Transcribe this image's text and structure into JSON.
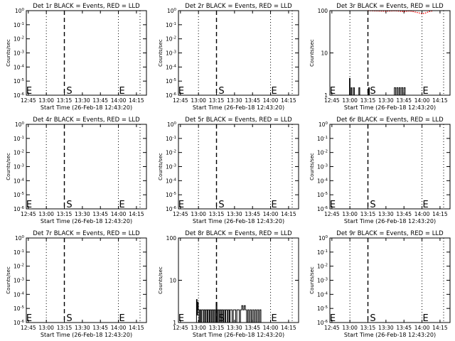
{
  "figure": {
    "background": "#ffffff",
    "events_color": "#000000",
    "lld_color": "#ff0000"
  },
  "chart_data": [
    {
      "type": "line",
      "title": "Det 1r BLACK = Events, RED = LLD",
      "xlabel": "Start Time (26-Feb-18 12:43:20)",
      "ylabel": "Counts/sec",
      "xticks": [
        "12:45",
        "13:00",
        "13:15",
        "13:30",
        "13:45",
        "14:00",
        "14:15"
      ],
      "yscale": "log",
      "yticks": [
        "10^0",
        "10^-1",
        "10^-2",
        "10^-3",
        "10^-4",
        "10^-5",
        "10^-6"
      ],
      "xlim": [
        "12:43:20",
        "14:23:20"
      ],
      "ylim": [
        "1e-6",
        "1"
      ],
      "markers": [
        {
          "time": "13:15",
          "label": "S"
        },
        {
          "time": "14:00",
          "label": "E"
        }
      ],
      "dotted_lines": [
        "13:00",
        "14:00",
        "14:18"
      ],
      "dashed_lines": [
        "13:15"
      ],
      "side_labels": [
        "E"
      ],
      "series": []
    },
    {
      "type": "line",
      "title": "Det 2r BLACK = Events, RED = LLD",
      "xlabel": "Start Time (26-Feb-18 12:43:20)",
      "ylabel": "Counts/sec",
      "xticks": [
        "12:45",
        "13:00",
        "13:15",
        "13:30",
        "13:45",
        "14:00",
        "14:15"
      ],
      "yscale": "log",
      "yticks": [
        "10^0",
        "10^-1",
        "10^-2",
        "10^-3",
        "10^-4",
        "10^-5",
        "10^-6"
      ],
      "xlim": [
        "12:43:20",
        "14:23:20"
      ],
      "ylim": [
        "1e-6",
        "1"
      ],
      "markers": [
        {
          "time": "13:15",
          "label": "S"
        },
        {
          "time": "14:00",
          "label": "E"
        }
      ],
      "dotted_lines": [
        "13:00",
        "14:00",
        "14:18"
      ],
      "dashed_lines": [
        "13:15"
      ],
      "side_labels": [
        "E"
      ],
      "series": []
    },
    {
      "type": "line",
      "title": "Det 3r BLACK = Events, RED = LLD",
      "xlabel": "Start Time (26-Feb-18 12:43:20)",
      "ylabel": "Counts/sec",
      "xticks": [
        "12:45",
        "13:00",
        "13:15",
        "13:30",
        "13:45",
        "14:00",
        "14:15"
      ],
      "yscale": "log",
      "yticks": [
        "100",
        "10",
        "1"
      ],
      "xlim": [
        "12:43:20",
        "14:23:20"
      ],
      "ylim": [
        "1",
        "100"
      ],
      "markers": [
        {
          "time": "13:15",
          "label": "S"
        },
        {
          "time": "14:00",
          "label": "E"
        }
      ],
      "dotted_lines": [
        "13:00",
        "14:00",
        "14:18"
      ],
      "dashed_lines": [
        "13:15"
      ],
      "side_labels": [
        "E"
      ],
      "series": [
        {
          "color": "#000000",
          "style": "histogram",
          "points": [
            {
              "t": "12:59:00",
              "v": 1
            },
            {
              "t": "12:59:40",
              "v": 2.5
            },
            {
              "t": "13:00:10",
              "v": 1
            },
            {
              "t": "13:01:00",
              "v": 1.5
            },
            {
              "t": "13:01:40",
              "v": 1
            },
            {
              "t": "13:03:00",
              "v": 1.5
            },
            {
              "t": "13:03:40",
              "v": 1
            },
            {
              "t": "13:07:30",
              "v": 1.5
            },
            {
              "t": "13:08:10",
              "v": 1
            },
            {
              "t": "13:15:30",
              "v": 1.5
            },
            {
              "t": "13:16:10",
              "v": 1
            },
            {
              "t": "13:37:00",
              "v": 1.5
            },
            {
              "t": "13:38:00",
              "v": 1
            },
            {
              "t": "13:39:00",
              "v": 1.5
            },
            {
              "t": "13:40:00",
              "v": 1
            },
            {
              "t": "13:41:00",
              "v": 1.5
            },
            {
              "t": "13:42:00",
              "v": 1
            },
            {
              "t": "13:43:00",
              "v": 1.5
            },
            {
              "t": "13:44:00",
              "v": 1
            },
            {
              "t": "13:45:00",
              "v": 1.5
            },
            {
              "t": "13:46:00",
              "v": 1
            }
          ]
        },
        {
          "color": "#ff0000",
          "style": "dotted",
          "points": [
            {
              "t": "13:15:00",
              "v": 100
            },
            {
              "t": "13:22:00",
              "v": 98
            },
            {
              "t": "13:30:00",
              "v": 97
            },
            {
              "t": "13:38:00",
              "v": 99
            },
            {
              "t": "13:45:00",
              "v": 95
            },
            {
              "t": "13:50:00",
              "v": 98
            },
            {
              "t": "13:55:00",
              "v": 92
            },
            {
              "t": "14:00:00",
              "v": 85
            },
            {
              "t": "14:03:00",
              "v": 88
            },
            {
              "t": "14:06:00",
              "v": 95
            },
            {
              "t": "14:09:00",
              "v": 99
            }
          ]
        }
      ]
    },
    {
      "type": "line",
      "title": "Det 4r BLACK = Events, RED = LLD",
      "xlabel": "Start Time (26-Feb-18 12:43:20)",
      "ylabel": "Counts/sec",
      "xticks": [
        "12:45",
        "13:00",
        "13:15",
        "13:30",
        "13:45",
        "14:00",
        "14:15"
      ],
      "yscale": "log",
      "yticks": [
        "10^0",
        "10^-1",
        "10^-2",
        "10^-3",
        "10^-4",
        "10^-5",
        "10^-6"
      ],
      "xlim": [
        "12:43:20",
        "14:23:20"
      ],
      "ylim": [
        "1e-6",
        "1"
      ],
      "markers": [
        {
          "time": "13:15",
          "label": "S"
        },
        {
          "time": "14:00",
          "label": "E"
        }
      ],
      "dotted_lines": [
        "13:00",
        "14:00",
        "14:18"
      ],
      "dashed_lines": [
        "13:15"
      ],
      "side_labels": [
        "E"
      ],
      "series": []
    },
    {
      "type": "line",
      "title": "Det 5r BLACK = Events, RED = LLD",
      "xlabel": "Start Time (26-Feb-18 12:43:20)",
      "ylabel": "Counts/sec",
      "xticks": [
        "12:45",
        "13:00",
        "13:15",
        "13:30",
        "13:45",
        "14:00",
        "14:15"
      ],
      "yscale": "log",
      "yticks": [
        "10^0",
        "10^-1",
        "10^-2",
        "10^-3",
        "10^-4",
        "10^-5",
        "10^-6"
      ],
      "xlim": [
        "12:43:20",
        "14:23:20"
      ],
      "ylim": [
        "1e-6",
        "1"
      ],
      "markers": [
        {
          "time": "13:15",
          "label": "S"
        },
        {
          "time": "14:00",
          "label": "E"
        }
      ],
      "dotted_lines": [
        "13:00",
        "14:00",
        "14:18"
      ],
      "dashed_lines": [
        "13:15"
      ],
      "side_labels": [
        "E"
      ],
      "series": []
    },
    {
      "type": "line",
      "title": "Det 6r BLACK = Events, RED = LLD",
      "xlabel": "Start Time (26-Feb-18 12:43:20)",
      "ylabel": "Counts/sec",
      "xticks": [
        "12:45",
        "13:00",
        "13:15",
        "13:30",
        "13:45",
        "14:00",
        "14:15"
      ],
      "yscale": "log",
      "yticks": [
        "10^0",
        "10^-1",
        "10^-2",
        "10^-3",
        "10^-4",
        "10^-5",
        "10^-6"
      ],
      "xlim": [
        "12:43:20",
        "14:23:20"
      ],
      "ylim": [
        "1e-6",
        "1"
      ],
      "markers": [
        {
          "time": "13:15",
          "label": "S"
        },
        {
          "time": "14:00",
          "label": "E"
        }
      ],
      "dotted_lines": [
        "13:00",
        "14:00",
        "14:18"
      ],
      "dashed_lines": [
        "13:15"
      ],
      "side_labels": [
        "E"
      ],
      "series": []
    },
    {
      "type": "line",
      "title": "Det 7r BLACK = Events, RED = LLD",
      "xlabel": "Start Time (26-Feb-18 12:43:20)",
      "ylabel": "Counts/sec",
      "xticks": [
        "12:45",
        "13:00",
        "13:15",
        "13:30",
        "13:45",
        "14:00",
        "14:15"
      ],
      "yscale": "log",
      "yticks": [
        "10^0",
        "10^-1",
        "10^-2",
        "10^-3",
        "10^-4",
        "10^-5",
        "10^-6"
      ],
      "xlim": [
        "12:43:20",
        "14:23:20"
      ],
      "ylim": [
        "1e-6",
        "1"
      ],
      "markers": [
        {
          "time": "13:15",
          "label": "S"
        },
        {
          "time": "14:00",
          "label": "E"
        }
      ],
      "dotted_lines": [
        "13:00",
        "14:00",
        "14:18"
      ],
      "dashed_lines": [
        "13:15"
      ],
      "side_labels": [
        "E"
      ],
      "series": []
    },
    {
      "type": "line",
      "title": "Det 8r BLACK = Events, RED = LLD",
      "xlabel": "Start Time (26-Feb-18 12:43:20)",
      "ylabel": "Counts/sec",
      "xticks": [
        "12:45",
        "13:00",
        "13:15",
        "13:30",
        "13:45",
        "14:00",
        "14:15"
      ],
      "yscale": "log",
      "yticks": [
        "100",
        "10",
        "1"
      ],
      "xlim": [
        "12:43:20",
        "14:23:20"
      ],
      "ylim": [
        "1",
        "100"
      ],
      "markers": [
        {
          "time": "13:15",
          "label": "S"
        },
        {
          "time": "14:00",
          "label": "E"
        }
      ],
      "dotted_lines": [
        "13:00",
        "14:00",
        "14:18"
      ],
      "dashed_lines": [
        "13:15"
      ],
      "side_labels": [
        "E"
      ],
      "series": [
        {
          "color": "#000000",
          "style": "histogram",
          "points": [
            {
              "t": "12:58:00",
              "v": 1
            },
            {
              "t": "12:58:20",
              "v": 3.5
            },
            {
              "t": "12:58:50",
              "v": 1.5
            },
            {
              "t": "12:59:20",
              "v": 3
            },
            {
              "t": "12:59:50",
              "v": 2
            },
            {
              "t": "13:00:30",
              "v": 1
            },
            {
              "t": "13:01:10",
              "v": 2
            },
            {
              "t": "13:02:00",
              "v": 1
            },
            {
              "t": "13:02:40",
              "v": 2
            },
            {
              "t": "13:04:00",
              "v": 1
            },
            {
              "t": "13:04:40",
              "v": 2
            },
            {
              "t": "13:05:40",
              "v": 1
            },
            {
              "t": "13:06:20",
              "v": 2
            },
            {
              "t": "13:07:20",
              "v": 1
            },
            {
              "t": "13:08:00",
              "v": 2
            },
            {
              "t": "13:09:00",
              "v": 1
            },
            {
              "t": "13:09:40",
              "v": 2
            },
            {
              "t": "13:10:40",
              "v": 1
            },
            {
              "t": "13:11:20",
              "v": 2
            },
            {
              "t": "13:12:20",
              "v": 1
            },
            {
              "t": "13:13:00",
              "v": 2
            },
            {
              "t": "13:14:00",
              "v": 1
            },
            {
              "t": "13:14:40",
              "v": 3
            },
            {
              "t": "13:15:20",
              "v": 1
            },
            {
              "t": "13:16:00",
              "v": 2
            },
            {
              "t": "13:17:00",
              "v": 1
            },
            {
              "t": "13:17:40",
              "v": 2
            },
            {
              "t": "13:18:40",
              "v": 1
            },
            {
              "t": "13:19:20",
              "v": 2
            },
            {
              "t": "13:20:20",
              "v": 1
            },
            {
              "t": "13:21:00",
              "v": 2
            },
            {
              "t": "13:22:00",
              "v": 1
            },
            {
              "t": "13:22:40",
              "v": 2
            },
            {
              "t": "13:24:00",
              "v": 1
            },
            {
              "t": "13:24:40",
              "v": 2
            },
            {
              "t": "13:25:40",
              "v": 1
            },
            {
              "t": "13:26:20",
              "v": 2
            },
            {
              "t": "13:28:00",
              "v": 1
            },
            {
              "t": "13:29:00",
              "v": 2
            },
            {
              "t": "13:31:00",
              "v": 1
            },
            {
              "t": "13:32:00",
              "v": 2
            },
            {
              "t": "13:34:00",
              "v": 1
            },
            {
              "t": "13:35:00",
              "v": 2
            },
            {
              "t": "13:36:00",
              "v": 2.5
            },
            {
              "t": "13:37:00",
              "v": 2
            },
            {
              "t": "13:38:00",
              "v": 2.5
            },
            {
              "t": "13:39:00",
              "v": 2
            },
            {
              "t": "13:40:00",
              "v": 1
            },
            {
              "t": "13:41:00",
              "v": 2
            },
            {
              "t": "13:42:00",
              "v": 1
            },
            {
              "t": "13:43:00",
              "v": 2
            },
            {
              "t": "13:44:00",
              "v": 1
            },
            {
              "t": "13:45:00",
              "v": 2
            },
            {
              "t": "13:46:00",
              "v": 1
            },
            {
              "t": "13:47:00",
              "v": 2
            },
            {
              "t": "13:48:00",
              "v": 1
            },
            {
              "t": "13:49:00",
              "v": 2
            },
            {
              "t": "13:50:00",
              "v": 1
            },
            {
              "t": "13:51:00",
              "v": 2
            },
            {
              "t": "13:52:00",
              "v": 1
            }
          ]
        }
      ]
    },
    {
      "type": "line",
      "title": "Det 9r BLACK = Events, RED = LLD",
      "xlabel": "Start Time (26-Feb-18 12:43:20)",
      "ylabel": "Counts/sec",
      "xticks": [
        "12:45",
        "13:00",
        "13:15",
        "13:30",
        "13:45",
        "14:00",
        "14:15"
      ],
      "yscale": "log",
      "yticks": [
        "10^0",
        "10^-1",
        "10^-2",
        "10^-3",
        "10^-4",
        "10^-5",
        "10^-6"
      ],
      "xlim": [
        "12:43:20",
        "14:23:20"
      ],
      "ylim": [
        "1e-6",
        "1"
      ],
      "markers": [
        {
          "time": "13:15",
          "label": "S"
        },
        {
          "time": "14:00",
          "label": "E"
        }
      ],
      "dotted_lines": [
        "13:00",
        "14:00",
        "14:18"
      ],
      "dashed_lines": [
        "13:15"
      ],
      "side_labels": [
        "E"
      ],
      "series": []
    }
  ]
}
